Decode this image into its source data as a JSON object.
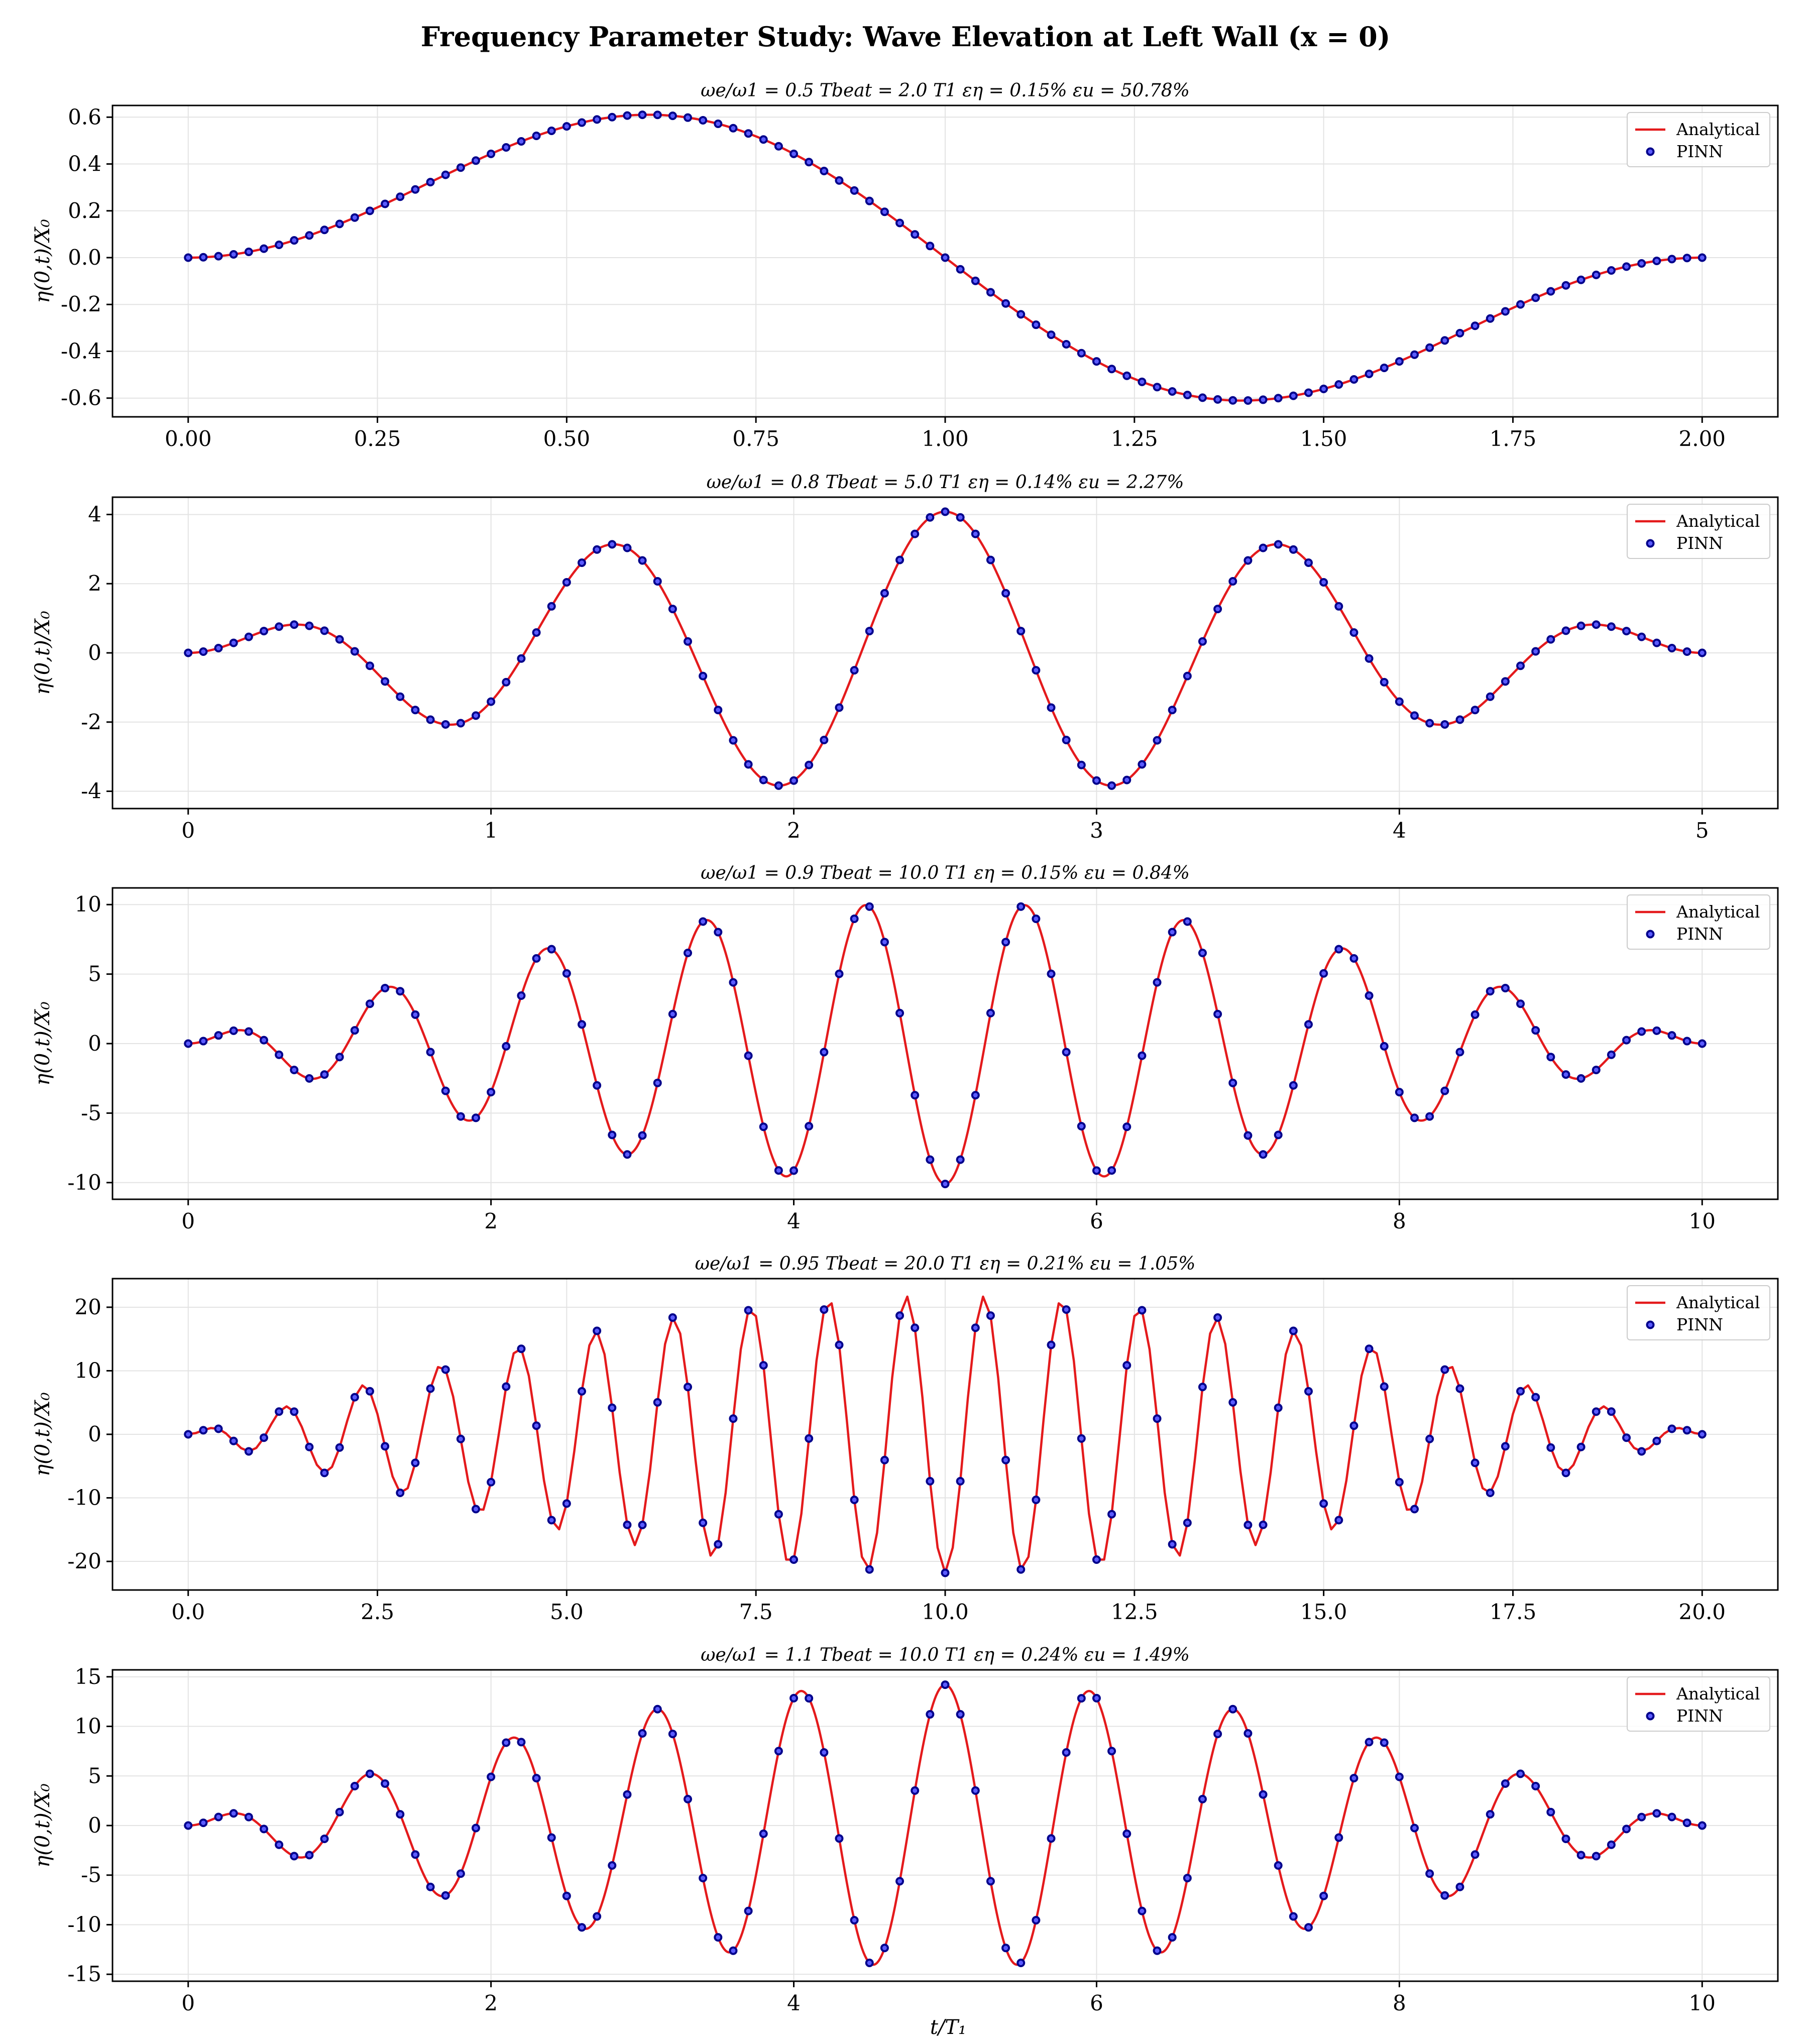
{
  "figure": {
    "title": "Frequency Parameter Study: Wave Elevation at Left Wall (x = 0)",
    "xlabel": "t/T₁",
    "ylabel": "η(0,t)/X₀"
  },
  "colors": {
    "analytical": "#e41a1c",
    "pinn_fill": "#5b5bff",
    "pinn_edge": "#00008b"
  },
  "chart_data": [
    {
      "type": "line",
      "title": "ωe/ω1 = 0.5    Tbeat = 2.0 T1    εη = 0.15%    εu = 50.78%",
      "omega_ratio": 0.5,
      "t_beat": 2.0,
      "xlim": [
        -0.1,
        2.1
      ],
      "ylim": [
        -0.68,
        0.65
      ],
      "xticks": [
        0,
        0.25,
        0.5,
        0.75,
        1.0,
        1.25,
        1.5,
        1.75,
        2.0
      ],
      "xtick_labels": [
        "0.00",
        "0.25",
        "0.50",
        "0.75",
        "1.00",
        "1.25",
        "1.50",
        "1.75",
        "2.00"
      ],
      "yticks": [
        -0.6,
        -0.4,
        -0.2,
        0.0,
        0.2,
        0.4,
        0.6
      ],
      "ytick_labels": [
        "-0.6",
        "-0.4",
        "-0.2",
        "0.0",
        "0.2",
        "0.4",
        "0.6"
      ],
      "legend": [
        "Analytical",
        "PINN"
      ],
      "legend_position": "top-right",
      "grid": true,
      "series": [
        {
          "name": "Analytical",
          "style": "line",
          "t_end": 2.0,
          "peak_abs": 0.61,
          "points": 400
        },
        {
          "name": "PINN",
          "style": "markers",
          "t_end": 2.0,
          "peak_abs": 0.61,
          "points": 101
        }
      ]
    },
    {
      "type": "line",
      "title": "ωe/ω1 = 0.8    Tbeat = 5.0 T1    εη = 0.14%    εu = 2.27%",
      "omega_ratio": 0.8,
      "t_beat": 5.0,
      "xlim": [
        -0.25,
        5.25
      ],
      "ylim": [
        -4.5,
        4.5
      ],
      "xticks": [
        0,
        1,
        2,
        3,
        4,
        5
      ],
      "xtick_labels": [
        "0",
        "1",
        "2",
        "3",
        "4",
        "5"
      ],
      "yticks": [
        -4,
        -2,
        0,
        2,
        4
      ],
      "ytick_labels": [
        "-4",
        "-2",
        "0",
        "2",
        "4"
      ],
      "legend": [
        "Analytical",
        "PINN"
      ],
      "legend_position": "top-right",
      "grid": true,
      "series": [
        {
          "name": "Analytical",
          "style": "line",
          "t_end": 5.0,
          "peak_abs": 4.08,
          "points": 600
        },
        {
          "name": "PINN",
          "style": "markers",
          "t_end": 5.0,
          "peak_abs": 4.08,
          "points": 101
        }
      ]
    },
    {
      "type": "line",
      "title": "ωe/ω1 = 0.9    Tbeat = 10.0 T1    εη = 0.15%    εu = 0.84%",
      "omega_ratio": 0.9,
      "t_beat": 10.0,
      "xlim": [
        -0.5,
        10.5
      ],
      "ylim": [
        -11.2,
        11.2
      ],
      "xticks": [
        0,
        2,
        4,
        6,
        8,
        10
      ],
      "xtick_labels": [
        "0",
        "2",
        "4",
        "6",
        "8",
        "10"
      ],
      "yticks": [
        -10,
        -5,
        0,
        5,
        10
      ],
      "ytick_labels": [
        "-10",
        "-5",
        "0",
        "5",
        "10"
      ],
      "legend": [
        "Analytical",
        "PINN"
      ],
      "legend_position": "top-right",
      "grid": true,
      "series": [
        {
          "name": "Analytical",
          "style": "line",
          "t_end": 10.0,
          "peak_abs": 10.1,
          "points": 1000
        },
        {
          "name": "PINN",
          "style": "markers",
          "t_end": 10.0,
          "peak_abs": 10.1,
          "points": 101
        }
      ]
    },
    {
      "type": "line",
      "title": "ωe/ω1 = 0.95    Tbeat = 20.0 T1    εη = 0.21%    εu = 1.05%",
      "omega_ratio": 0.95,
      "t_beat": 20.0,
      "xlim": [
        -1.0,
        21.0
      ],
      "ylim": [
        -24.5,
        24.5
      ],
      "xticks": [
        0,
        2.5,
        5,
        7.5,
        10,
        12.5,
        15,
        17.5,
        20
      ],
      "xtick_labels": [
        "0.0",
        "2.5",
        "5.0",
        "7.5",
        "10.0",
        "12.5",
        "15.0",
        "17.5",
        "20.0"
      ],
      "yticks": [
        -20,
        -10,
        0,
        10,
        20
      ],
      "ytick_labels": [
        "-20",
        "-10",
        "0",
        "10",
        "20"
      ],
      "legend": [
        "Analytical",
        "PINN"
      ],
      "legend_position": "top-right",
      "grid": true,
      "series": [
        {
          "name": "Analytical",
          "style": "line",
          "t_end": 20.0,
          "peak_abs": 21.8,
          "points": 200
        },
        {
          "name": "PINN",
          "style": "markers",
          "t_end": 20.0,
          "peak_abs": 21.8,
          "points": 101
        }
      ]
    },
    {
      "type": "line",
      "title": "ωe/ω1 = 1.1    Tbeat = 10.0 T1    εη = 0.24%    εu = 1.49%",
      "omega_ratio": 1.1,
      "t_beat": 10.0,
      "xlim": [
        -0.5,
        10.5
      ],
      "ylim": [
        -15.7,
        15.7
      ],
      "xticks": [
        0,
        2,
        4,
        6,
        8,
        10
      ],
      "xtick_labels": [
        "0",
        "2",
        "4",
        "6",
        "8",
        "10"
      ],
      "yticks": [
        -15,
        -10,
        -5,
        0,
        5,
        10,
        15
      ],
      "ytick_labels": [
        "-15",
        "-10",
        "-5",
        "0",
        "5",
        "10",
        "15"
      ],
      "legend": [
        "Analytical",
        "PINN"
      ],
      "legend_position": "top-right",
      "grid": true,
      "series": [
        {
          "name": "Analytical",
          "style": "line",
          "t_end": 10.0,
          "peak_abs": 14.2,
          "points": 1000
        },
        {
          "name": "PINN",
          "style": "markers",
          "t_end": 10.0,
          "peak_abs": 14.2,
          "points": 101
        }
      ]
    }
  ]
}
